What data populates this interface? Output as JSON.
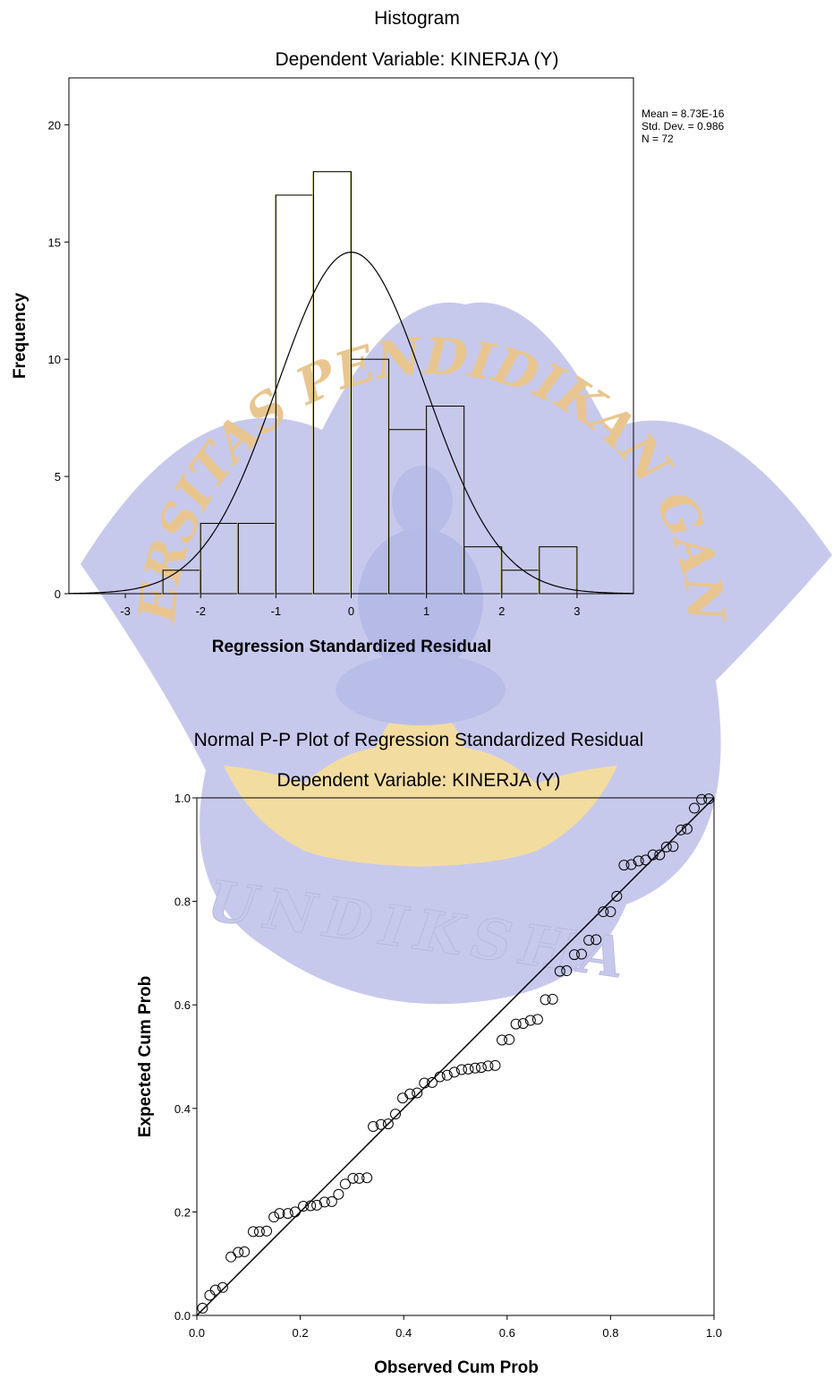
{
  "watermark": {
    "arc_text": "UNIVERSITAS PENDIDIKAN GANESHA",
    "bottom_text": "UNDIKSHA",
    "colors": {
      "petal": "#c7c9ec",
      "lotus": "#f3dca0",
      "text": "#e9c68f"
    }
  },
  "chart_data": [
    {
      "type": "bar",
      "title": "Histogram",
      "subtitle": "Dependent Variable: KINERJA (Y)",
      "xlabel": "Regression Standardized Residual",
      "ylabel": "Frequency",
      "xlim": [
        -3.75,
        3.75
      ],
      "ylim": [
        0,
        22
      ],
      "xticks": [
        -3,
        -2,
        -1,
        0,
        1,
        2,
        3
      ],
      "yticks": [
        0,
        5,
        10,
        15,
        20
      ],
      "bins": [
        {
          "start": -2.5,
          "end": -2.0,
          "count": 1
        },
        {
          "start": -2.0,
          "end": -1.5,
          "count": 3
        },
        {
          "start": -1.5,
          "end": -1.0,
          "count": 3
        },
        {
          "start": -1.0,
          "end": -0.5,
          "count": 17
        },
        {
          "start": -0.5,
          "end": 0.0,
          "count": 18
        },
        {
          "start": 0.0,
          "end": 0.5,
          "count": 10
        },
        {
          "start": 0.5,
          "end": 1.0,
          "count": 7
        },
        {
          "start": 1.0,
          "end": 1.5,
          "count": 8
        },
        {
          "start": 1.5,
          "end": 2.0,
          "count": 2
        },
        {
          "start": 2.0,
          "end": 2.5,
          "count": 1
        },
        {
          "start": 2.5,
          "end": 3.0,
          "count": 2
        }
      ],
      "normal_curve": {
        "mean": 0,
        "sd": 0.986,
        "n": 72,
        "bin_width": 0.5
      },
      "stats_text": [
        "Mean = 8.73E-16",
        "Std. Dev. = 0.986",
        "N = 72"
      ],
      "grid": false
    },
    {
      "type": "scatter",
      "title": "Normal P-P Plot of Regression Standardized Residual",
      "subtitle": "Dependent Variable: KINERJA (Y)",
      "xlabel": "Observed Cum Prob",
      "ylabel": "Expected Cum Prob",
      "xlim": [
        0,
        1
      ],
      "ylim": [
        0,
        1
      ],
      "xticks": [
        "0.0",
        "0.2",
        "0.4",
        "0.6",
        "0.8",
        "1.0"
      ],
      "yticks": [
        "0.0",
        "0.2",
        "0.4",
        "0.6",
        "0.8",
        "1.0"
      ],
      "reference_line": [
        [
          0,
          0
        ],
        [
          1,
          1
        ]
      ],
      "points": [
        [
          0.011,
          0.014
        ],
        [
          0.025,
          0.039
        ],
        [
          0.036,
          0.049
        ],
        [
          0.05,
          0.054
        ],
        [
          0.066,
          0.113
        ],
        [
          0.08,
          0.122
        ],
        [
          0.092,
          0.123
        ],
        [
          0.109,
          0.162
        ],
        [
          0.121,
          0.162
        ],
        [
          0.135,
          0.163
        ],
        [
          0.149,
          0.19
        ],
        [
          0.16,
          0.197
        ],
        [
          0.176,
          0.197
        ],
        [
          0.19,
          0.2
        ],
        [
          0.206,
          0.211
        ],
        [
          0.22,
          0.212
        ],
        [
          0.232,
          0.213
        ],
        [
          0.247,
          0.219
        ],
        [
          0.261,
          0.22
        ],
        [
          0.274,
          0.234
        ],
        [
          0.287,
          0.254
        ],
        [
          0.302,
          0.265
        ],
        [
          0.314,
          0.265
        ],
        [
          0.329,
          0.266
        ],
        [
          0.341,
          0.365
        ],
        [
          0.356,
          0.369
        ],
        [
          0.37,
          0.37
        ],
        [
          0.384,
          0.389
        ],
        [
          0.398,
          0.42
        ],
        [
          0.412,
          0.428
        ],
        [
          0.426,
          0.43
        ],
        [
          0.44,
          0.449
        ],
        [
          0.455,
          0.45
        ],
        [
          0.47,
          0.461
        ],
        [
          0.484,
          0.464
        ],
        [
          0.498,
          0.47
        ],
        [
          0.512,
          0.475
        ],
        [
          0.525,
          0.476
        ],
        [
          0.538,
          0.478
        ],
        [
          0.55,
          0.479
        ],
        [
          0.563,
          0.482
        ],
        [
          0.577,
          0.483
        ],
        [
          0.59,
          0.532
        ],
        [
          0.604,
          0.533
        ],
        [
          0.617,
          0.563
        ],
        [
          0.631,
          0.564
        ],
        [
          0.645,
          0.57
        ],
        [
          0.659,
          0.572
        ],
        [
          0.674,
          0.61
        ],
        [
          0.688,
          0.611
        ],
        [
          0.702,
          0.665
        ],
        [
          0.715,
          0.666
        ],
        [
          0.73,
          0.697
        ],
        [
          0.744,
          0.698
        ],
        [
          0.758,
          0.725
        ],
        [
          0.772,
          0.726
        ],
        [
          0.786,
          0.78
        ],
        [
          0.8,
          0.78
        ],
        [
          0.812,
          0.81
        ],
        [
          0.826,
          0.87
        ],
        [
          0.84,
          0.871
        ],
        [
          0.854,
          0.878
        ],
        [
          0.868,
          0.88
        ],
        [
          0.882,
          0.89
        ],
        [
          0.895,
          0.89
        ],
        [
          0.908,
          0.905
        ],
        [
          0.921,
          0.906
        ],
        [
          0.936,
          0.938
        ],
        [
          0.948,
          0.94
        ],
        [
          0.962,
          0.98
        ],
        [
          0.976,
          0.997
        ],
        [
          0.99,
          0.998
        ]
      ],
      "grid": false
    }
  ]
}
